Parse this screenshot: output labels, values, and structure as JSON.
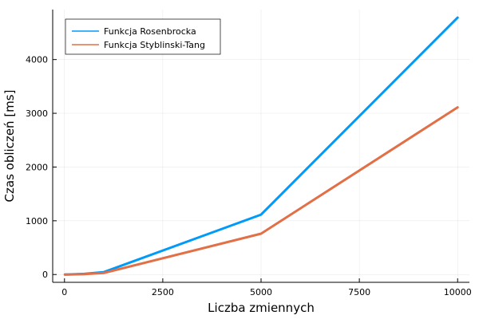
{
  "chart_data": {
    "type": "line",
    "title": "",
    "xlabel": "Liczba zmiennych",
    "ylabel": "Czas obliczeń [ms]",
    "xlim": [
      -300,
      10300
    ],
    "ylim": [
      -145,
      4930
    ],
    "xticks": [
      0,
      2500,
      5000,
      7500,
      10000
    ],
    "xtick_labels": [
      "0",
      "2500",
      "5000",
      "7500",
      "10000"
    ],
    "yticks": [
      0,
      1000,
      2000,
      3000,
      4000
    ],
    "ytick_labels": [
      "0",
      "1000",
      "2000",
      "3000",
      "4000"
    ],
    "grid": true,
    "legend_position": "top-left",
    "series": [
      {
        "name": "Funkcja Rosenbrocka",
        "color": "#009AF9",
        "x": [
          10,
          100,
          500,
          1000,
          5000,
          10000
        ],
        "y": [
          0,
          2,
          12,
          45,
          1115,
          4780
        ]
      },
      {
        "name": "Funkcja Styblinski-Tang",
        "color": "#E26F46",
        "x": [
          10,
          100,
          500,
          1000,
          5000,
          10000
        ],
        "y": [
          0,
          1,
          8,
          28,
          760,
          3110
        ]
      }
    ]
  }
}
